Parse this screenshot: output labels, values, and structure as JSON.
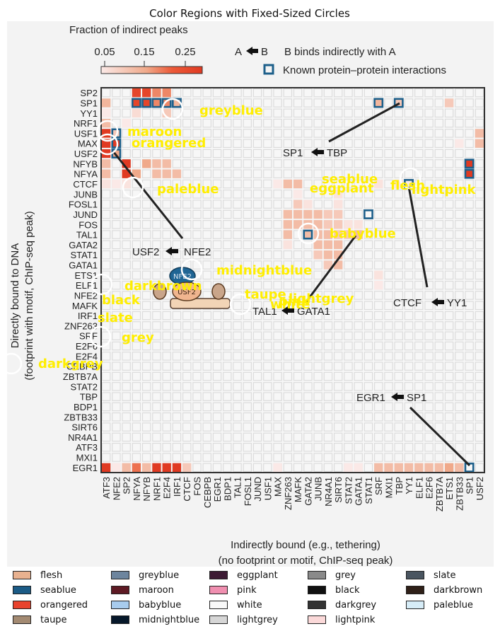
{
  "title": "Color Regions with Fixed-Sized Circles",
  "colorbar": {
    "label": "Fraction of indirect peaks",
    "ticks": [
      "0.05",
      "0.15",
      "0.25"
    ]
  },
  "key": {
    "a": "A",
    "b": "B",
    "arrow_text": "B binds indirectly with A",
    "known_text": "Known protein–protein interactions"
  },
  "y_title_1": "Directly bound to DNA",
  "y_title_2": "(footprint with motif, ChIP-seq peak)",
  "x_title_1": "Indirectly bound (e.g., tethering)",
  "x_title_2": "(no footprint or motif, ChIP-seq peak)",
  "rows": [
    "SP2",
    "SP1",
    "YY1",
    "NRF1",
    "USF1",
    "MAX",
    "USF2",
    "NFYB",
    "NFYA",
    "CTCF",
    "JUNB",
    "FOSL1",
    "JUND",
    "FOS",
    "TAL1",
    "GATA2",
    "STAT1",
    "GATA1",
    "ETS1",
    "ELF1",
    "NFE2",
    "MAFK",
    "IRF1",
    "ZNF263",
    "SRF",
    "E2F6",
    "E2F4",
    "CEBPB",
    "ZBTB7A",
    "STAT2",
    "TBP",
    "BDP1",
    "ZBTB33",
    "SIRT6",
    "NR4A1",
    "ATF3",
    "MXI1",
    "EGR1"
  ],
  "cols": [
    "ATF3",
    "NFE2",
    "SP2",
    "NFYA",
    "NFYB",
    "NRF1",
    "E2F4",
    "IRF1",
    "CTCF",
    "FOS",
    "CEBPB",
    "EGR1",
    "BDP1",
    "TAL1",
    "FOSL1",
    "JUND",
    "USF1",
    "MAX",
    "ZNF263",
    "MAFK",
    "GATA2",
    "JUNB",
    "NR4A1",
    "SIRT6",
    "STAT2",
    "GATA1",
    "STAT1",
    "SRF",
    "MXI1",
    "TBP",
    "YY1",
    "ELF1",
    "E2F6",
    "ZBTB7A",
    "ETS1",
    "ZBTB33",
    "SP1",
    "USF2"
  ],
  "pair_labels": {
    "sp1_tbp": {
      "a": "SP1",
      "b": "TBP"
    },
    "usf2_nfe2": {
      "a": "USF2",
      "b": "NFE2"
    },
    "tal1_gata1": {
      "a": "TAL1",
      "b": "GATA1"
    },
    "ctcf_yy1": {
      "a": "CTCF",
      "b": "YY1"
    },
    "egr1_sp1": {
      "a": "EGR1",
      "b": "SP1"
    }
  },
  "cartoon": {
    "top": "NFE2",
    "bottom": "USF2"
  },
  "overlay_labels": [
    "greyblue",
    "maroon",
    "orangered",
    "seablue",
    "eggplant",
    "flesh",
    "paleblue",
    "lightpink",
    "babyblue",
    "midnightblue",
    "darkbrown",
    "black",
    "taupe",
    "lightgrey",
    "white",
    "pink",
    "slate",
    "grey",
    "darkgrey"
  ],
  "legend": [
    {
      "name": "flesh",
      "color": "#e8b18f"
    },
    {
      "name": "seablue",
      "color": "#1b5b86"
    },
    {
      "name": "orangered",
      "color": "#e8432d"
    },
    {
      "name": "taupe",
      "color": "#a38a72"
    },
    {
      "name": "greyblue",
      "color": "#6d859e"
    },
    {
      "name": "maroon",
      "color": "#5e1a24"
    },
    {
      "name": "babyblue",
      "color": "#a8ccee"
    },
    {
      "name": "midnightblue",
      "color": "#06182a"
    },
    {
      "name": "eggplant",
      "color": "#3d1b34"
    },
    {
      "name": "pink",
      "color": "#f08fb0"
    },
    {
      "name": "white",
      "color": "#f8f8f8"
    },
    {
      "name": "lightgrey",
      "color": "#d6d6d6"
    },
    {
      "name": "grey",
      "color": "#8a8a8a"
    },
    {
      "name": "black",
      "color": "#111111"
    },
    {
      "name": "darkgrey",
      "color": "#333333"
    },
    {
      "name": "lightpink",
      "color": "#fbd9d9"
    },
    {
      "name": "slate",
      "color": "#4a5560"
    },
    {
      "name": "darkbrown",
      "color": "#2f2018"
    },
    {
      "name": "paleblue",
      "color": "#d6ecf7"
    }
  ],
  "cells": [
    {
      "r": "SP2",
      "c": "NFYA",
      "v": 0.27
    },
    {
      "r": "SP2",
      "c": "NFYB",
      "v": 0.27
    },
    {
      "r": "SP2",
      "c": "NRF1",
      "v": 0.18
    },
    {
      "r": "SP2",
      "c": "E2F4",
      "v": 0.18
    },
    {
      "r": "SP1",
      "c": "ATF3",
      "v": 0.13
    },
    {
      "r": "SP1",
      "c": "NFYA",
      "v": 0.27
    },
    {
      "r": "SP1",
      "c": "NFYB",
      "v": 0.27
    },
    {
      "r": "SP1",
      "c": "NRF1",
      "v": 0.18
    },
    {
      "r": "SP1",
      "c": "E2F4",
      "v": 0.18
    },
    {
      "r": "SP1",
      "c": "IRF1",
      "v": 0.13
    },
    {
      "r": "SP1",
      "c": "SRF",
      "v": 0.13
    },
    {
      "r": "SP1",
      "c": "TBP",
      "v": 0.1
    },
    {
      "r": "SP1",
      "c": "ETS1",
      "v": 0.1
    },
    {
      "r": "YY1",
      "c": "ATF3",
      "v": 0.05
    },
    {
      "r": "YY1",
      "c": "NFYA",
      "v": 0.07
    },
    {
      "r": "YY1",
      "c": "E2F4",
      "v": 0.1
    },
    {
      "r": "NRF1",
      "c": "ATF3",
      "v": 0.12
    },
    {
      "r": "NRF1",
      "c": "SP2",
      "v": 0.05
    },
    {
      "r": "USF1",
      "c": "ATF3",
      "v": 0.3
    },
    {
      "r": "USF1",
      "c": "NFE2",
      "v": 0.1
    },
    {
      "r": "USF1",
      "c": "USF2",
      "v": 0.12
    },
    {
      "r": "MAX",
      "c": "ATF3",
      "v": 0.3
    },
    {
      "r": "MAX",
      "c": "NFE2",
      "v": 0.3
    },
    {
      "r": "MAX",
      "c": "ZBTB33",
      "v": 0.05
    },
    {
      "r": "MAX",
      "c": "USF2",
      "v": 0.12
    },
    {
      "r": "USF2",
      "c": "ATF3",
      "v": 0.3
    },
    {
      "r": "USF2",
      "c": "NFE2",
      "v": 0.15
    },
    {
      "r": "NFYB",
      "c": "ATF3",
      "v": 0.12
    },
    {
      "r": "NFYB",
      "c": "SP2",
      "v": 0.3
    },
    {
      "r": "NFYB",
      "c": "NFYB",
      "v": 0.15
    },
    {
      "r": "NFYB",
      "c": "NRF1",
      "v": 0.12
    },
    {
      "r": "NFYB",
      "c": "E2F4",
      "v": 0.12
    },
    {
      "r": "NFYB",
      "c": "SP1",
      "v": 0.3
    },
    {
      "r": "NFYA",
      "c": "ATF3",
      "v": 0.12
    },
    {
      "r": "NFYA",
      "c": "SP2",
      "v": 0.3
    },
    {
      "r": "NFYA",
      "c": "NFYA",
      "v": 0.15
    },
    {
      "r": "NFYA",
      "c": "NRF1",
      "v": 0.12
    },
    {
      "r": "NFYA",
      "c": "E2F4",
      "v": 0.12
    },
    {
      "r": "NFYA",
      "c": "IRF1",
      "v": 0.12
    },
    {
      "r": "NFYA",
      "c": "SP1",
      "v": 0.3
    },
    {
      "r": "CTCF",
      "c": "ATF3",
      "v": 0.06
    },
    {
      "r": "CTCF",
      "c": "NFE2",
      "v": 0.05
    },
    {
      "r": "CTCF",
      "c": "SP2",
      "v": 0.06
    },
    {
      "r": "CTCF",
      "c": "MAX",
      "v": 0.05
    },
    {
      "r": "CTCF",
      "c": "ZNF263",
      "v": 0.12
    },
    {
      "r": "CTCF",
      "c": "MAFK",
      "v": 0.12
    },
    {
      "r": "CTCF",
      "c": "SRF",
      "v": 0.06
    },
    {
      "r": "CTCF",
      "c": "TBP",
      "v": 0.06
    },
    {
      "r": "CTCF",
      "c": "YY1",
      "v": 0.05
    },
    {
      "r": "JUNB",
      "c": "MAFK",
      "v": 0.05
    },
    {
      "r": "JUNB",
      "c": "SIRT6",
      "v": 0.06
    },
    {
      "r": "FOSL1",
      "c": "MAFK",
      "v": 0.1
    },
    {
      "r": "FOSL1",
      "c": "GATA2",
      "v": 0.06
    },
    {
      "r": "FOSL1",
      "c": "SIRT6",
      "v": 0.06
    },
    {
      "r": "JUND",
      "c": "ZNF263",
      "v": 0.12
    },
    {
      "r": "JUND",
      "c": "MAFK",
      "v": 0.12
    },
    {
      "r": "JUND",
      "c": "GATA2",
      "v": 0.12
    },
    {
      "r": "JUND",
      "c": "JUNB",
      "v": 0.12
    },
    {
      "r": "JUND",
      "c": "NR4A1",
      "v": 0.1
    },
    {
      "r": "JUND",
      "c": "SIRT6",
      "v": 0.1
    },
    {
      "r": "FOS",
      "c": "ZNF263",
      "v": 0.12
    },
    {
      "r": "FOS",
      "c": "MAFK",
      "v": 0.12
    },
    {
      "r": "FOS",
      "c": "GATA2",
      "v": 0.12
    },
    {
      "r": "FOS",
      "c": "JUNB",
      "v": 0.12
    },
    {
      "r": "FOS",
      "c": "NR4A1",
      "v": 0.1
    },
    {
      "r": "FOS",
      "c": "SIRT6",
      "v": 0.1
    },
    {
      "r": "FOS",
      "c": "STAT2",
      "v": 0.06
    },
    {
      "r": "FOS",
      "c": "GATA1",
      "v": 0.06
    },
    {
      "r": "TAL1",
      "c": "ZNF263",
      "v": 0.12
    },
    {
      "r": "TAL1",
      "c": "GATA2",
      "v": 0.12
    },
    {
      "r": "TAL1",
      "c": "JUNB",
      "v": 0.12
    },
    {
      "r": "TAL1",
      "c": "NR4A1",
      "v": 0.12
    },
    {
      "r": "TAL1",
      "c": "SIRT6",
      "v": 0.1
    },
    {
      "r": "TAL1",
      "c": "STAT2",
      "v": 0.1
    },
    {
      "r": "TAL1",
      "c": "GATA1",
      "v": 0.12
    },
    {
      "r": "GATA2",
      "c": "ZNF263",
      "v": 0.06
    },
    {
      "r": "GATA2",
      "c": "JUNB",
      "v": 0.12
    },
    {
      "r": "GATA2",
      "c": "NR4A1",
      "v": 0.12
    },
    {
      "r": "GATA2",
      "c": "SIRT6",
      "v": 0.12
    },
    {
      "r": "STAT1",
      "c": "JUNB",
      "v": 0.1
    },
    {
      "r": "STAT1",
      "c": "NR4A1",
      "v": 0.12
    },
    {
      "r": "STAT1",
      "c": "SIRT6",
      "v": 0.12
    },
    {
      "r": "GATA1",
      "c": "NR4A1",
      "v": 0.1
    },
    {
      "r": "GATA1",
      "c": "SIRT6",
      "v": 0.12
    },
    {
      "r": "ETS1",
      "c": "SRF",
      "v": 0.06
    },
    {
      "r": "ELF1",
      "c": "SRF",
      "v": 0.05
    },
    {
      "r": "EGR1",
      "c": "ATF3",
      "v": 0.3
    },
    {
      "r": "EGR1",
      "c": "NFE2",
      "v": 0.05
    },
    {
      "r": "EGR1",
      "c": "SP2",
      "v": 0.12
    },
    {
      "r": "EGR1",
      "c": "NFYA",
      "v": 0.2
    },
    {
      "r": "EGR1",
      "c": "NFYB",
      "v": 0.12
    },
    {
      "r": "EGR1",
      "c": "NRF1",
      "v": 0.3
    },
    {
      "r": "EGR1",
      "c": "E2F4",
      "v": 0.3
    },
    {
      "r": "EGR1",
      "c": "IRF1",
      "v": 0.3
    },
    {
      "r": "EGR1",
      "c": "CTCF",
      "v": 0.1
    },
    {
      "r": "EGR1",
      "c": "MAX",
      "v": 0.05
    },
    {
      "r": "EGR1",
      "c": "STAT2",
      "v": 0.05
    },
    {
      "r": "EGR1",
      "c": "GATA1",
      "v": 0.05
    },
    {
      "r": "EGR1",
      "c": "SRF",
      "v": 0.12
    },
    {
      "r": "EGR1",
      "c": "MXI1",
      "v": 0.12
    },
    {
      "r": "EGR1",
      "c": "TBP",
      "v": 0.12
    },
    {
      "r": "EGR1",
      "c": "YY1",
      "v": 0.12
    },
    {
      "r": "EGR1",
      "c": "ELF1",
      "v": 0.12
    },
    {
      "r": "EGR1",
      "c": "E2F6",
      "v": 0.12
    },
    {
      "r": "EGR1",
      "c": "ZBTB7A",
      "v": 0.12
    },
    {
      "r": "EGR1",
      "c": "ETS1",
      "v": 0.15
    },
    {
      "r": "EGR1",
      "c": "ZBTB33",
      "v": 0.12
    }
  ],
  "boxes": [
    {
      "r": "SP1",
      "c": "NFYA"
    },
    {
      "r": "SP1",
      "c": "NFYB"
    },
    {
      "r": "SP1",
      "c": "NRF1"
    },
    {
      "r": "SP1",
      "c": "E2F4"
    },
    {
      "r": "SP1",
      "c": "IRF1"
    },
    {
      "r": "SP1",
      "c": "SRF"
    },
    {
      "r": "SP1",
      "c": "TBP"
    },
    {
      "r": "USF1",
      "c": "NFE2"
    },
    {
      "r": "MAX",
      "c": "NFE2"
    },
    {
      "r": "USF2",
      "c": "NFE2"
    },
    {
      "r": "NFYB",
      "c": "SP1"
    },
    {
      "r": "NFYA",
      "c": "SP1"
    },
    {
      "r": "CTCF",
      "c": "YY1"
    },
    {
      "r": "JUND",
      "c": "STAT1"
    },
    {
      "r": "TAL1",
      "c": "GATA2"
    },
    {
      "r": "EGR1",
      "c": "SP1"
    }
  ]
}
